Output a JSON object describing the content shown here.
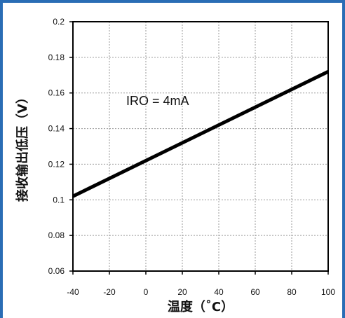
{
  "chart_data": {
    "type": "line",
    "xlabel": "温度（˚C）",
    "ylabel": "接收输出低压（V）",
    "xlim": [
      -40,
      100
    ],
    "ylim": [
      0.06,
      0.2
    ],
    "xticks": [
      -40,
      -20,
      0,
      20,
      40,
      60,
      80,
      100
    ],
    "yticks": [
      0.06,
      0.08,
      0.1,
      0.12,
      0.14,
      0.16,
      0.18,
      0.2
    ],
    "grid": true,
    "annotation": "IRO = 4mA",
    "series": [
      {
        "x": [
          -40,
          100
        ],
        "y": [
          0.102,
          0.172
        ],
        "color": "#000000"
      }
    ]
  },
  "colors": {
    "frame_border": "#2a6db5",
    "grid": "#9a9a9a",
    "line": "#000000"
  }
}
